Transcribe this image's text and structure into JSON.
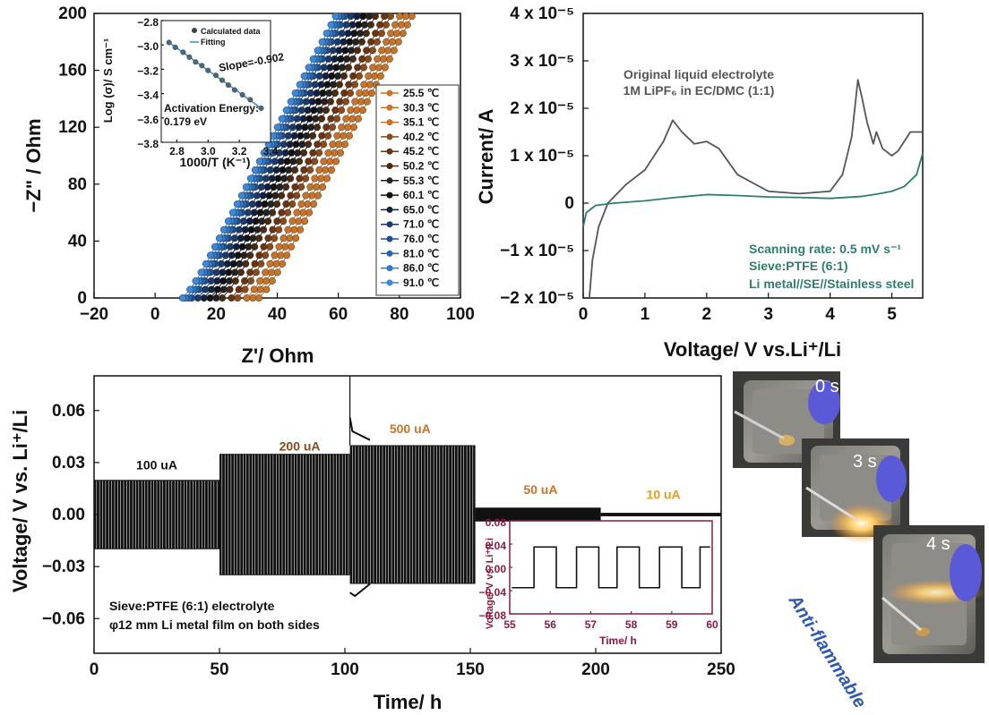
{
  "chart_data": [
    {
      "type": "scatter",
      "ylabel": "−Z\" / Ohm",
      "xlabel": "Z'/ Ohm",
      "xlim": [
        -20,
        100
      ],
      "ylim": [
        0,
        200
      ],
      "xticks": [
        "−20",
        "0",
        "20",
        "40",
        "60",
        "80",
        "100"
      ],
      "yticks": [
        "0",
        "40",
        "80",
        "120",
        "160",
        "200"
      ],
      "series": [
        {
          "name": "25.5 ℃",
          "color": "#c8732a",
          "x0": 34,
          "slope": 4.1
        },
        {
          "name": "30.3 ℃",
          "color": "#c8732a",
          "x0": 32,
          "slope": 4.1
        },
        {
          "name": "35.1 ℃",
          "color": "#c8732a",
          "x0": 30,
          "slope": 4.1
        },
        {
          "name": "40.2 ℃",
          "color": "#8a4a1c",
          "x0": 27,
          "slope": 4.1
        },
        {
          "name": "45.2 ℃",
          "color": "#6b3410",
          "x0": 25,
          "slope": 4.1
        },
        {
          "name": "50.2 ℃",
          "color": "#4a2a10",
          "x0": 22,
          "slope": 4.1
        },
        {
          "name": "55.3 ℃",
          "color": "#222222",
          "x0": 20,
          "slope": 4.1
        },
        {
          "name": "60.1 ℃",
          "color": "#111111",
          "x0": 18,
          "slope": 4.1
        },
        {
          "name": "65.0 ℃",
          "color": "#102040",
          "x0": 16,
          "slope": 4.1
        },
        {
          "name": "71.0 ℃",
          "color": "#1a3a6a",
          "x0": 14,
          "slope": 4.1
        },
        {
          "name": "76.0 ℃",
          "color": "#1f4f8f",
          "x0": 12,
          "slope": 4.1
        },
        {
          "name": "81.0 ℃",
          "color": "#2866b0",
          "x0": 11,
          "slope": 4.1
        },
        {
          "name": "86.0 ℃",
          "color": "#3279c8",
          "x0": 10,
          "slope": 4.1
        },
        {
          "name": "91.0 ℃",
          "color": "#3c88d8",
          "x0": 9,
          "slope": 4.1
        }
      ],
      "inset": {
        "type": "scatter",
        "xlabel": "1000/T (K⁻¹)",
        "ylabel": "Log (σ)/ S cm⁻¹",
        "xlim": [
          2.7,
          3.4
        ],
        "ylim": [
          -3.8,
          -2.8
        ],
        "xticks": [
          "2.8",
          "3.0",
          "3.2",
          "3.4"
        ],
        "yticks": [
          "−2.8",
          "−3.0",
          "−3.2",
          "−3.4",
          "−3.6",
          "−3.8"
        ],
        "legend": [
          "Calculated data",
          "Fitting"
        ],
        "slope_label": "Slope=-0.902",
        "activation_label": "Activation Energy:",
        "activation_value": "0.179 eV",
        "x": [
          2.75,
          2.79,
          2.84,
          2.88,
          2.92,
          2.96,
          3.0,
          3.05,
          3.09,
          3.13,
          3.17,
          3.22,
          3.27,
          3.34
        ],
        "y": [
          -2.98,
          -3.02,
          -3.06,
          -3.1,
          -3.14,
          -3.17,
          -3.21,
          -3.25,
          -3.29,
          -3.33,
          -3.37,
          -3.41,
          -3.45,
          -3.52
        ]
      }
    },
    {
      "type": "line",
      "xlabel": "Voltage/ V vs.Li⁺/Li",
      "ylabel": "Current/ A",
      "xlim": [
        0,
        5.5
      ],
      "ylim": [
        -2e-05,
        4e-05
      ],
      "xticks": [
        "0",
        "1",
        "2",
        "3",
        "4",
        "5"
      ],
      "yticks": [
        "−2 x 10⁻⁵",
        "−1 x 10⁻⁵",
        "0",
        "1 x 10⁻⁵",
        "2 x 10⁻⁵",
        "3 x 10⁻⁵",
        "4 x 10⁻⁵"
      ],
      "annotation_top_1": "Original liquid electrolyte",
      "annotation_top_2": "1M LiPF₆ in EC/DMC (1:1)",
      "annotation_bottom_1": "Scanning rate: 0.5 mV s⁻¹",
      "annotation_bottom_2": "Sieve:PTFE (6:1)",
      "annotation_bottom_3": "Li metal//SE//Stainless steel",
      "series": [
        {
          "color": "#555555",
          "x": [
            0.1,
            0.15,
            0.25,
            0.4,
            0.7,
            1.0,
            1.3,
            1.45,
            1.6,
            1.8,
            2.0,
            2.2,
            2.5,
            3.0,
            3.5,
            4.0,
            4.2,
            4.35,
            4.45,
            4.52,
            4.6,
            4.7,
            4.75,
            4.85,
            5.0,
            5.1,
            5.3,
            5.5
          ],
          "y": [
            -2e-05,
            -1.2e-05,
            -5e-06,
            0,
            4e-06,
            7e-06,
            1.3e-05,
            1.75e-05,
            1.5e-05,
            1.25e-05,
            1.3e-05,
            1.15e-05,
            6e-06,
            2.5e-06,
            2e-06,
            2.5e-06,
            6e-06,
            1.4e-05,
            2.6e-05,
            2.2e-05,
            1.7e-05,
            1.25e-05,
            1.5e-05,
            1.15e-05,
            1e-05,
            1.1e-05,
            1.5e-05,
            1.5e-05
          ]
        },
        {
          "color": "#2e7d6e",
          "x": [
            0.0,
            0.05,
            0.2,
            0.5,
            1.0,
            1.5,
            2.0,
            2.5,
            3.0,
            3.5,
            4.0,
            4.5,
            4.8,
            5.0,
            5.2,
            5.4,
            5.5
          ],
          "y": [
            -5e-06,
            -2e-06,
            -5e-07,
            0,
            5e-07,
            1.2e-06,
            1.8e-06,
            1.6e-06,
            1.3e-06,
            1.2e-06,
            1e-06,
            1.4e-06,
            2e-06,
            2.5e-06,
            3.5e-06,
            6e-06,
            1.05e-05
          ]
        }
      ]
    },
    {
      "type": "line",
      "xlabel": "Time/ h",
      "ylabel": "Voltage/ V vs. Li⁺/Li",
      "xlim": [
        0,
        250
      ],
      "ylim": [
        -0.08,
        0.08
      ],
      "xticks": [
        "0",
        "50",
        "100",
        "150",
        "200",
        "250"
      ],
      "yticks": [
        "−0.06",
        "−0.03",
        "0.00",
        "0.03",
        "0.06"
      ],
      "segments": [
        {
          "label": "100 uA",
          "color": "#111111",
          "t0": 0,
          "t1": 50,
          "amp": 0.02
        },
        {
          "label": "200 uA",
          "color": "#8a4a1c",
          "t0": 50,
          "t1": 102,
          "amp": 0.035
        },
        {
          "label": "500 uA",
          "color": "#c8732a",
          "t0": 102,
          "t1": 152,
          "amp": 0.04
        },
        {
          "label": "50 uA",
          "color": "#c8732a",
          "t0": 152,
          "t1": 202,
          "amp": 0.004
        },
        {
          "label": "10 uA",
          "color": "#e0a020",
          "t0": 202,
          "t1": 250,
          "amp": 0.001
        }
      ],
      "note_1": "Sieve:PTFE (6:1) electrolyte",
      "note_2": "φ12 mm Li metal film on both sides",
      "inset": {
        "type": "line",
        "xlabel": "Time/ h",
        "ylabel": "Voltage/ V vs. Li⁺/Li",
        "xlim": [
          55,
          60
        ],
        "ylim": [
          -0.08,
          0.08
        ],
        "xticks": [
          "55",
          "56",
          "57",
          "58",
          "59",
          "60"
        ],
        "yticks": [
          "−0.08",
          "−0.04",
          "0.00",
          "0.04",
          "0.08"
        ],
        "amp": 0.035,
        "period": 1,
        "color": "#8b1a3c"
      }
    }
  ],
  "photos": {
    "labels": [
      "0 s",
      "3 s",
      "4 s"
    ],
    "caption": "Anti-flammable"
  }
}
